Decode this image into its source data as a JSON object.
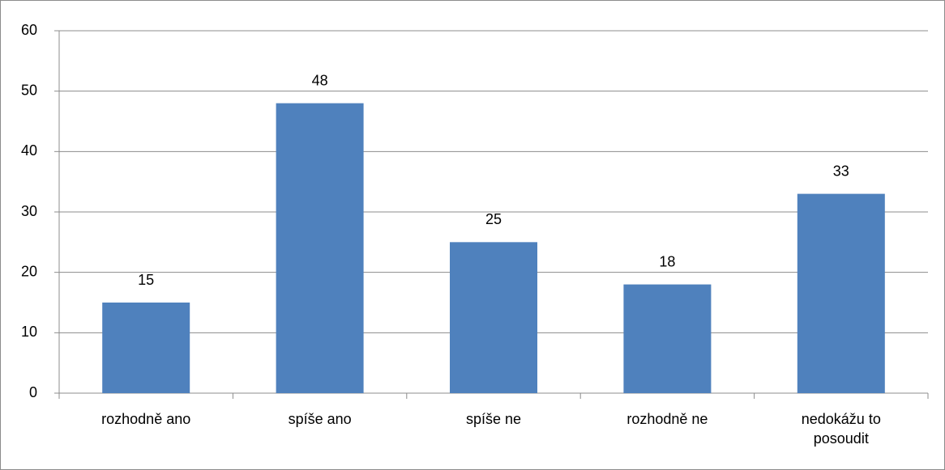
{
  "chart_data": {
    "type": "bar",
    "categories": [
      "rozhodně ano",
      "spíše ano",
      "spíše ne",
      "rozhodně ne",
      "nedokážu to posoudit"
    ],
    "values": [
      15,
      48,
      25,
      18,
      33
    ],
    "color": "#4f81bd",
    "ylim": [
      0,
      60
    ],
    "yticks": [
      0,
      10,
      20,
      30,
      40,
      50,
      60
    ],
    "grid": true
  }
}
